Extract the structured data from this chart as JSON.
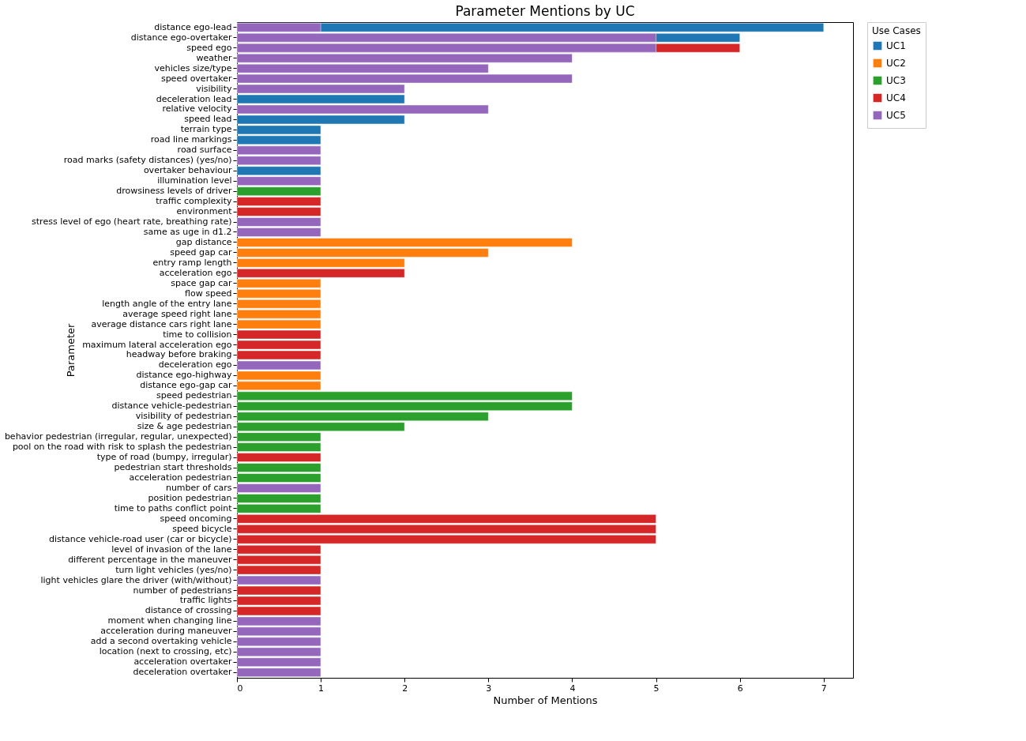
{
  "chart_data": {
    "type": "bar",
    "orientation": "horizontal",
    "title": "Parameter Mentions by UC",
    "xlabel": "Number of Mentions",
    "ylabel": "Parameter",
    "legend_title": "Use Cases",
    "legend": "top right",
    "grid": false,
    "xlim": [
      0,
      7.35
    ],
    "xticks": [
      0,
      1,
      2,
      3,
      4,
      5,
      6,
      7
    ],
    "categories": [
      "distance ego-lead",
      "distance ego-overtaker",
      "speed ego",
      "weather",
      "vehicles size/type",
      "speed overtaker",
      "visibility",
      "deceleration lead",
      "relative velocity",
      "speed lead",
      "terrain type",
      "road line markings",
      "road surface",
      "road marks (safety distances) (yes/no)",
      "overtaker behaviour",
      "illumination level",
      "drowsiness levels of driver",
      "traffic complexity",
      "environment",
      "stress level of ego (heart rate, breathing rate)",
      "same as uge in d1.2",
      "gap distance",
      "speed gap car",
      "entry ramp length",
      "acceleration ego",
      "space gap car",
      "flow speed",
      "length angle of the entry lane",
      "average speed right lane",
      "average distance cars right lane",
      "time to collision",
      "maximum lateral acceleration ego",
      "headway before braking",
      "deceleration ego",
      "distance ego-highway",
      "distance ego-gap car",
      "speed pedestrian",
      "distance vehicle-pedestrian",
      "visibility of pedestrian",
      "size & age pedestrian",
      "behavior pedestrian (irregular, regular, unexpected)",
      "pool on the road with risk to splash the pedestrian",
      "type of road (bumpy, irregular)",
      "pedestrian start thresholds",
      "acceleration pedestrian",
      "number of cars",
      "position pedestrian",
      "time to paths conflict point",
      "speed oncoming",
      "speed bicycle",
      "distance vehicle-road user (car or bicycle)",
      "level of invasion of the lane",
      "different percentage in the maneuver",
      "turn light vehicles (yes/no)",
      "light vehicles glare the driver (with/without)",
      "number of pedestrians",
      "traffic lights",
      "distance of crossing",
      "moment when changing line",
      "acceleration during maneuver",
      "add a second overtaking vehicle",
      "location (next to crossing, etc)",
      "acceleration overtaker",
      "deceleration overtaker"
    ],
    "series": [
      {
        "name": "UC1",
        "color": "#1f77b4",
        "values": [
          7,
          6,
          null,
          null,
          null,
          null,
          null,
          2,
          null,
          2,
          1,
          1,
          null,
          null,
          1,
          null,
          null,
          null,
          null,
          null,
          null,
          null,
          null,
          null,
          null,
          null,
          null,
          null,
          null,
          null,
          null,
          null,
          null,
          null,
          null,
          null,
          null,
          null,
          null,
          null,
          null,
          null,
          null,
          null,
          null,
          null,
          null,
          null,
          null,
          null,
          null,
          null,
          null,
          null,
          null,
          null,
          null,
          null,
          null,
          null,
          null,
          null,
          null,
          null
        ]
      },
      {
        "name": "UC2",
        "color": "#ff7f0e",
        "values": [
          null,
          null,
          null,
          null,
          null,
          null,
          null,
          null,
          null,
          null,
          null,
          null,
          null,
          null,
          null,
          null,
          null,
          null,
          null,
          null,
          null,
          4,
          3,
          2,
          null,
          1,
          1,
          1,
          1,
          1,
          null,
          null,
          null,
          null,
          1,
          1,
          null,
          null,
          null,
          null,
          null,
          null,
          null,
          null,
          null,
          null,
          null,
          null,
          null,
          null,
          null,
          null,
          null,
          null,
          null,
          null,
          null,
          null,
          null,
          null,
          null,
          null,
          null,
          null
        ]
      },
      {
        "name": "UC3",
        "color": "#2ca02c",
        "values": [
          null,
          null,
          null,
          null,
          null,
          null,
          null,
          null,
          null,
          null,
          null,
          null,
          null,
          null,
          null,
          null,
          1,
          null,
          null,
          null,
          null,
          null,
          null,
          null,
          null,
          null,
          null,
          null,
          null,
          null,
          null,
          null,
          null,
          null,
          null,
          null,
          4,
          4,
          3,
          2,
          1,
          1,
          null,
          1,
          1,
          null,
          1,
          1,
          null,
          null,
          null,
          null,
          null,
          null,
          null,
          null,
          null,
          null,
          null,
          null,
          null,
          null,
          null,
          null
        ]
      },
      {
        "name": "UC4",
        "color": "#d62728",
        "values": [
          null,
          null,
          6,
          null,
          null,
          null,
          null,
          null,
          null,
          null,
          null,
          null,
          null,
          null,
          null,
          null,
          null,
          1,
          1,
          null,
          null,
          null,
          null,
          null,
          2,
          null,
          null,
          null,
          null,
          null,
          1,
          1,
          1,
          null,
          null,
          null,
          null,
          null,
          null,
          null,
          null,
          null,
          1,
          null,
          null,
          null,
          null,
          null,
          5,
          5,
          5,
          1,
          1,
          1,
          null,
          1,
          1,
          1,
          null,
          null,
          null,
          null,
          null,
          null
        ]
      },
      {
        "name": "UC5",
        "color": "#9467bd",
        "values": [
          1,
          5,
          5,
          4,
          3,
          4,
          2,
          null,
          3,
          null,
          null,
          null,
          1,
          1,
          null,
          1,
          null,
          null,
          null,
          1,
          1,
          null,
          null,
          null,
          null,
          null,
          null,
          null,
          null,
          null,
          null,
          null,
          null,
          1,
          null,
          null,
          null,
          null,
          null,
          null,
          null,
          null,
          null,
          null,
          null,
          1,
          null,
          null,
          null,
          null,
          null,
          null,
          null,
          null,
          1,
          null,
          null,
          null,
          1,
          1,
          1,
          1,
          1,
          1
        ]
      }
    ]
  }
}
